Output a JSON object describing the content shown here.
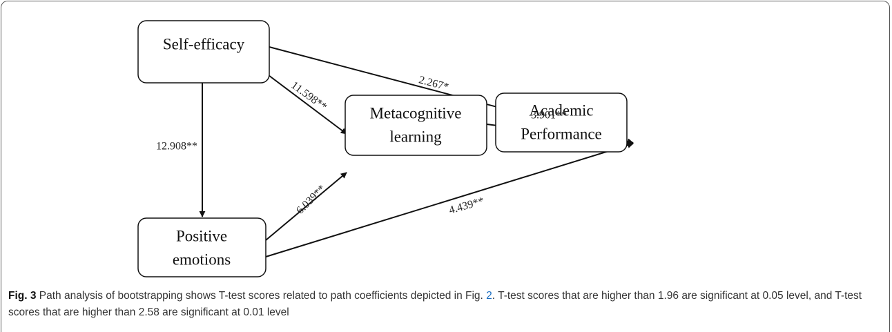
{
  "nodes": [
    {
      "label": [
        "Self-efficacy"
      ]
    },
    {
      "label": [
        "Metacognitive",
        "learning"
      ]
    },
    {
      "label": [
        "Academic",
        "Performance"
      ]
    },
    {
      "label": [
        "Positive",
        "emotions"
      ]
    }
  ],
  "edges": [
    {
      "label": "2.267*"
    },
    {
      "label": "11.598**"
    },
    {
      "label": "12.908**"
    },
    {
      "label": "3.901**"
    },
    {
      "label": "6.039**"
    },
    {
      "label": "4.439**"
    }
  ],
  "caption": {
    "label": "Fig. 3",
    "text": " Path analysis of bootstrapping shows T-test scores related to path coefficients depicted in Fig. ",
    "link": "2",
    "text2": ". T-test scores that are higher than 1.96 are significant at 0.05 level, and T-test scores that are higher than 2.58 are significant at 0.01 level"
  }
}
